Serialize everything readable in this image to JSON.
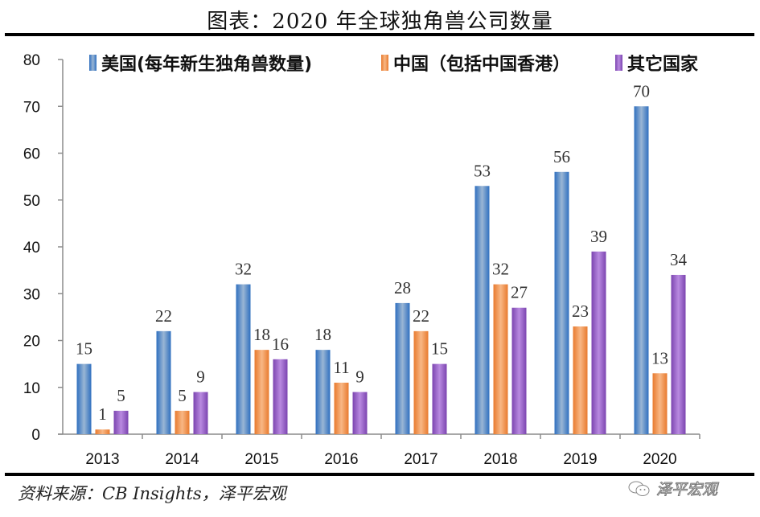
{
  "header": {
    "title": "图表：2020 年全球独角兽公司数量"
  },
  "footer": {
    "source": "资料来源：CB Insights，泽平宏观",
    "watermark": "泽平宏观"
  },
  "colors": {
    "us": "#3a78c3",
    "china": "#f0934f",
    "other": "#9460c8",
    "axis": "#8c8c8c"
  },
  "chart_data": {
    "type": "bar",
    "title": "图表：2020 年全球独角兽公司数量",
    "xlabel": "",
    "ylabel": "",
    "categories": [
      "2013",
      "2014",
      "2015",
      "2016",
      "2017",
      "2018",
      "2019",
      "2020"
    ],
    "series": [
      {
        "name": "美国(每年新生独角兽数量)",
        "key": "us",
        "values": [
          15,
          22,
          32,
          18,
          28,
          53,
          56,
          70
        ]
      },
      {
        "name": "中国（包括中国香港）",
        "key": "china",
        "values": [
          1,
          5,
          18,
          11,
          22,
          32,
          23,
          13
        ]
      },
      {
        "name": "其它国家",
        "key": "other",
        "values": [
          5,
          9,
          16,
          9,
          15,
          27,
          39,
          34
        ]
      }
    ],
    "ylim": [
      0,
      80
    ],
    "yticks": [
      0,
      10,
      20,
      30,
      40,
      50,
      60,
      70,
      80
    ],
    "grid": false,
    "legend_position": "top",
    "data_labels": true
  }
}
